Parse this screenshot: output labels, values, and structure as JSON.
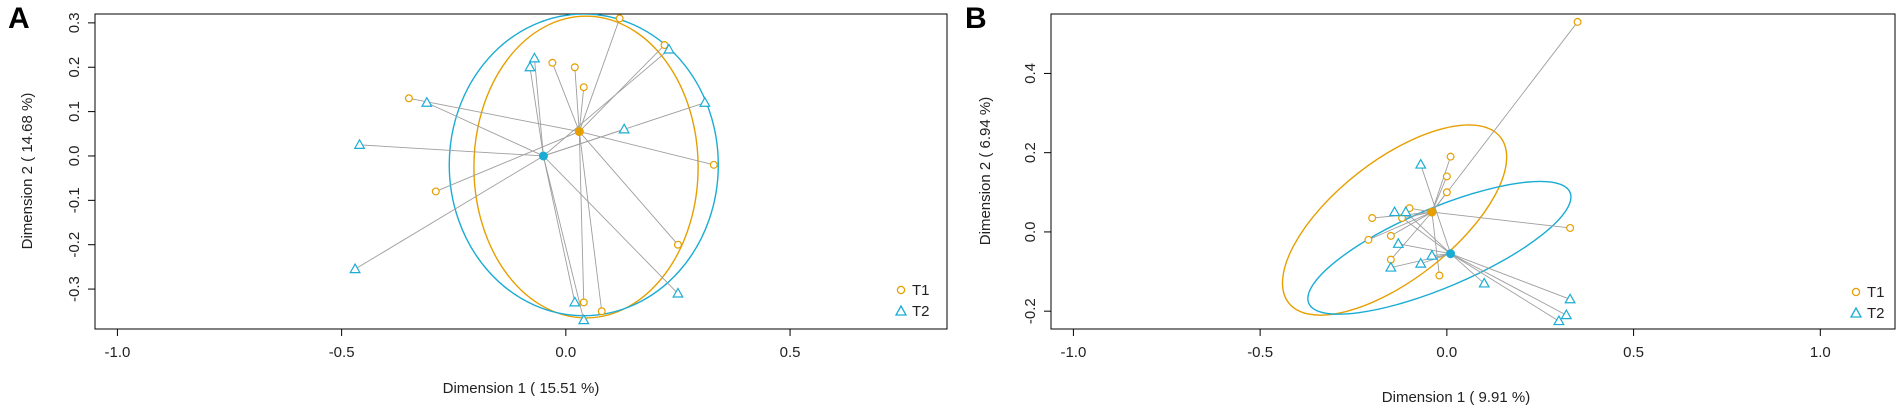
{
  "colors": {
    "T1": "#E69F00",
    "T2": "#1AACD4",
    "spoke": "#9e9e9e"
  },
  "chart_data": [
    {
      "type": "scatter",
      "panel": "A",
      "xlabel": "Dimension 1 ( 15.51 %)",
      "ylabel": "Dimension 2 ( 14.68 %)",
      "xlim": [
        -1.05,
        0.85
      ],
      "ylim": [
        -0.39,
        0.32
      ],
      "xticks": [
        -1.0,
        -0.5,
        0.0,
        0.5
      ],
      "xtick_labels": [
        "-1.0",
        "-0.5",
        "0.0",
        "0.5"
      ],
      "yticks": [
        -0.3,
        -0.2,
        -0.1,
        0.0,
        0.1,
        0.2,
        0.3
      ],
      "ytick_labels": [
        "-0.3",
        "-0.2",
        "-0.1",
        "0.0",
        "0.1",
        "0.2",
        "0.3"
      ],
      "legend": "bottom-right",
      "series": [
        {
          "name": "T1",
          "marker": "circle",
          "centroid": [
            0.03,
            0.055
          ],
          "ellipse": {
            "cx": 0.045,
            "cy": -0.025,
            "rx": 0.25,
            "ry": 0.34,
            "angle": 0
          },
          "points": [
            [
              0.12,
              0.31
            ],
            [
              0.22,
              0.25
            ],
            [
              0.02,
              0.2
            ],
            [
              -0.03,
              0.21
            ],
            [
              0.04,
              0.155
            ],
            [
              -0.35,
              0.13
            ],
            [
              0.33,
              -0.02
            ],
            [
              -0.29,
              -0.08
            ],
            [
              0.25,
              -0.2
            ],
            [
              0.04,
              -0.33
            ],
            [
              0.08,
              -0.35
            ]
          ]
        },
        {
          "name": "T2",
          "marker": "triangle",
          "centroid": [
            -0.05,
            0.0
          ],
          "ellipse": {
            "cx": 0.04,
            "cy": -0.02,
            "rx": 0.3,
            "ry": 0.34,
            "angle": 0
          },
          "points": [
            [
              -0.07,
              0.22
            ],
            [
              -0.08,
              0.2
            ],
            [
              0.23,
              0.24
            ],
            [
              -0.31,
              0.12
            ],
            [
              0.31,
              0.12
            ],
            [
              -0.46,
              0.025
            ],
            [
              0.13,
              0.06
            ],
            [
              -0.47,
              -0.255
            ],
            [
              0.02,
              -0.33
            ],
            [
              0.04,
              -0.37
            ],
            [
              0.25,
              -0.31
            ]
          ]
        }
      ]
    },
    {
      "type": "scatter",
      "panel": "B",
      "xlabel": "Dimension 1 ( 9.91 %)",
      "ylabel": "Dimension 2 ( 6.94 %)",
      "xlim": [
        -1.06,
        1.2
      ],
      "ylim": [
        -0.245,
        0.55
      ],
      "xticks": [
        -1.0,
        -0.5,
        0.0,
        0.5,
        1.0
      ],
      "xtick_labels": [
        "-1.0",
        "-0.5",
        "0.0",
        "0.5",
        "1.0"
      ],
      "yticks": [
        -0.2,
        0.0,
        0.2,
        0.4
      ],
      "ytick_labels": [
        "-0.2",
        "0.0",
        "0.2",
        "0.4"
      ],
      "legend": "bottom-right",
      "series": [
        {
          "name": "T1",
          "marker": "circle",
          "centroid": [
            -0.04,
            0.05
          ],
          "ellipse": {
            "cx": -0.14,
            "cy": 0.03,
            "rx": 0.36,
            "ry": 0.15,
            "angle": -38
          },
          "points": [
            [
              0.35,
              0.53
            ],
            [
              0.01,
              0.19
            ],
            [
              0.0,
              0.14
            ],
            [
              0.0,
              0.1
            ],
            [
              -0.1,
              0.06
            ],
            [
              -0.2,
              0.035
            ],
            [
              -0.12,
              0.035
            ],
            [
              0.33,
              0.01
            ],
            [
              -0.15,
              -0.01
            ],
            [
              -0.21,
              -0.02
            ],
            [
              -0.02,
              -0.11
            ],
            [
              -0.15,
              -0.07
            ]
          ]
        },
        {
          "name": "T2",
          "marker": "triangle",
          "centroid": [
            0.01,
            -0.055
          ],
          "ellipse": {
            "cx": -0.02,
            "cy": -0.04,
            "rx": 0.38,
            "ry": 0.1,
            "angle": -23
          },
          "points": [
            [
              -0.07,
              0.17
            ],
            [
              -0.14,
              0.05
            ],
            [
              -0.11,
              0.05
            ],
            [
              -0.13,
              -0.03
            ],
            [
              -0.04,
              -0.06
            ],
            [
              -0.07,
              -0.08
            ],
            [
              -0.15,
              -0.09
            ],
            [
              0.1,
              -0.13
            ],
            [
              0.33,
              -0.17
            ],
            [
              0.32,
              -0.21
            ],
            [
              0.3,
              -0.225
            ]
          ]
        }
      ]
    }
  ]
}
